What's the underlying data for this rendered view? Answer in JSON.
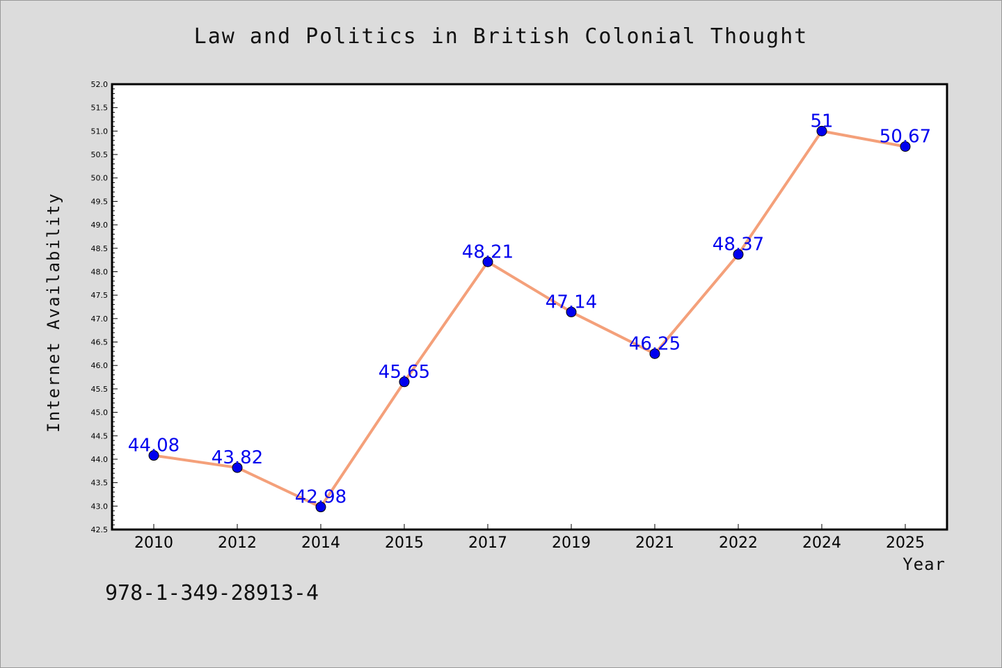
{
  "chart_data": {
    "type": "line",
    "title": "Law and Politics in British Colonial Thought",
    "xlabel": "Year",
    "ylabel": "Internet Availability",
    "categories": [
      "2010",
      "2012",
      "2014",
      "2015",
      "2017",
      "2019",
      "2021",
      "2022",
      "2024",
      "2025"
    ],
    "series": [
      {
        "values": [
          44.08,
          43.82,
          42.98,
          45.65,
          48.21,
          47.14,
          46.25,
          48.37,
          51,
          50.67
        ],
        "data_labels": [
          "44.08",
          "43.82",
          "42.98",
          "45.65",
          "48.21",
          "47.14",
          "46.25",
          "48.37",
          "51",
          "50.67"
        ],
        "line_color": "#f4a07a",
        "marker_color": "#0000ee"
      }
    ],
    "ylim": [
      42.5,
      52.0
    ],
    "yticks": [
      "42.5",
      "43.0",
      "43.5",
      "44.0",
      "44.5",
      "45.0",
      "45.5",
      "46.0",
      "46.5",
      "47.0",
      "47.5",
      "48.0",
      "48.5",
      "49.0",
      "49.5",
      "50.0",
      "50.5",
      "51.0",
      "51.5",
      "52.0"
    ],
    "grid": false,
    "label_color": "#0000ee"
  },
  "footer": {
    "isbn": "978-1-349-28913-4"
  }
}
